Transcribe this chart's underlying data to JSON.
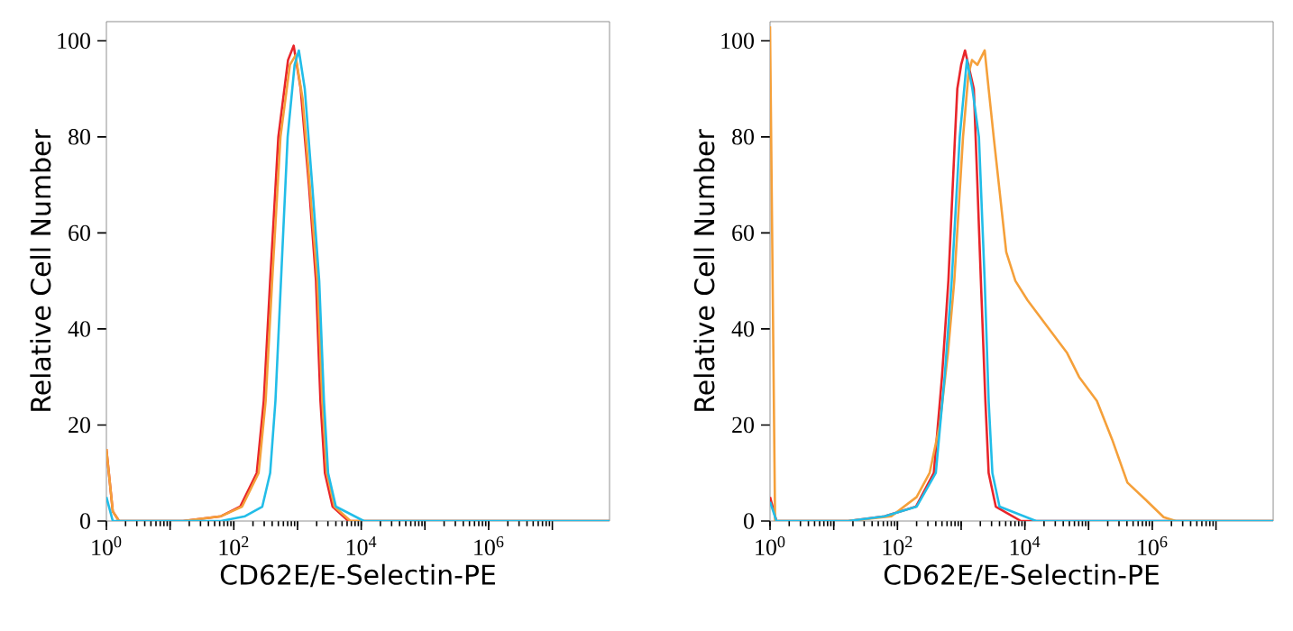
{
  "chart_data": [
    {
      "type": "line",
      "xlabel": "CD62E/E-Selectin-PE",
      "ylabel": "Relative Cell Number",
      "log": "x",
      "xlim": [
        1,
        79000000
      ],
      "ylim": [
        0,
        104
      ],
      "xticks": [
        {
          "value": 1,
          "label": "10$^{0}$"
        },
        {
          "value": 10,
          "label": null
        },
        {
          "value": 100,
          "label": "10$^{2}$"
        },
        {
          "value": 1000,
          "label": null
        },
        {
          "value": 10000,
          "label": "10$^{4}$"
        },
        {
          "value": 100000,
          "label": null
        },
        {
          "value": 1000000,
          "label": "10$^{6}$"
        },
        {
          "value": 10000000,
          "label": null
        }
      ],
      "yticks": [
        0,
        20,
        40,
        60,
        80,
        100
      ],
      "series": [
        {
          "color": "#e8252a",
          "x": [
            1,
            1.26,
            1.58,
            16,
            63,
            126,
            229,
            295,
            372,
            500,
            710,
            870,
            1120,
            1510,
            1950,
            2290,
            2690,
            3550,
            6300,
            79000000
          ],
          "values": [
            15,
            2,
            0,
            0,
            1,
            3,
            10,
            25,
            50,
            80,
            96,
            99,
            90,
            70,
            50,
            25,
            10,
            3,
            0,
            0
          ]
        },
        {
          "color": "#f5a03a",
          "x": [
            1,
            1.26,
            1.58,
            16,
            63,
            135,
            245,
            316,
            400,
            540,
            760,
            930,
            1200,
            1600,
            2050,
            2450,
            2880,
            3800,
            6800,
            79000000
          ],
          "values": [
            15,
            2,
            0,
            0,
            1,
            3,
            10,
            25,
            50,
            80,
            95,
            97,
            88,
            68,
            50,
            25,
            10,
            3,
            0,
            0
          ]
        },
        {
          "color": "#22bde8",
          "x": [
            1,
            1.26,
            63,
            150,
            280,
            372,
            450,
            550,
            700,
            900,
            1050,
            1300,
            1700,
            2190,
            2600,
            3020,
            4000,
            11000,
            79000000
          ],
          "values": [
            5,
            0,
            0,
            1,
            3,
            10,
            25,
            50,
            80,
            95,
            98,
            90,
            70,
            50,
            25,
            10,
            3,
            0,
            0
          ]
        }
      ]
    },
    {
      "type": "line",
      "xlabel": "CD62E/E-Selectin-PE",
      "ylabel": "Relative Cell Number",
      "log": "x",
      "xlim": [
        1,
        79000000
      ],
      "ylim": [
        0,
        104
      ],
      "xticks": [
        {
          "value": 1,
          "label": "10$^{0}$"
        },
        {
          "value": 10,
          "label": null
        },
        {
          "value": 100,
          "label": "10$^{2}$"
        },
        {
          "value": 1000,
          "label": null
        },
        {
          "value": 10000,
          "label": "10$^{4}$"
        },
        {
          "value": 100000,
          "label": null
        },
        {
          "value": 1000000,
          "label": "10$^{6}$"
        },
        {
          "value": 10000000,
          "label": null
        }
      ],
      "yticks": [
        0,
        20,
        40,
        60,
        80,
        100
      ],
      "series": [
        {
          "color": "#e8252a",
          "x": [
            1,
            1.26,
            17,
            63,
            195,
            372,
            500,
            630,
            800,
            870,
            1000,
            1150,
            1580,
            1800,
            2040,
            2400,
            2700,
            3500,
            8700,
            79000000
          ],
          "values": [
            5,
            0,
            0,
            1,
            3,
            10,
            30,
            50,
            80,
            90,
            95,
            98,
            90,
            70,
            50,
            25,
            10,
            3,
            0,
            0
          ]
        },
        {
          "color": "#f5a03a",
          "x": [
            1,
            1.2,
            17,
            80,
            200,
            320,
            460,
            620,
            780,
            1070,
            1300,
            1480,
            1800,
            2340,
            2700,
            3240,
            5100,
            7100,
            11000,
            21000,
            46000,
            71000,
            135000,
            234000,
            407000,
            776000,
            1510000,
            2340000,
            79000000
          ],
          "values": [
            103,
            0,
            0,
            1,
            5,
            10,
            20,
            35,
            50,
            80,
            93,
            96,
            95,
            98,
            90,
            80,
            56,
            50,
            46,
            41,
            35,
            30,
            25,
            17,
            8,
            4.5,
            0.8,
            0,
            0
          ]
        },
        {
          "color": "#22bde8",
          "x": [
            1,
            1.26,
            17,
            63,
            200,
            400,
            550,
            710,
            950,
            1230,
            1500,
            1900,
            2340,
            2700,
            3090,
            4000,
            15000,
            79000000
          ],
          "values": [
            4,
            0,
            0,
            1,
            3,
            10,
            30,
            50,
            80,
            96,
            90,
            80,
            50,
            25,
            10,
            3,
            0,
            0
          ]
        }
      ]
    }
  ]
}
